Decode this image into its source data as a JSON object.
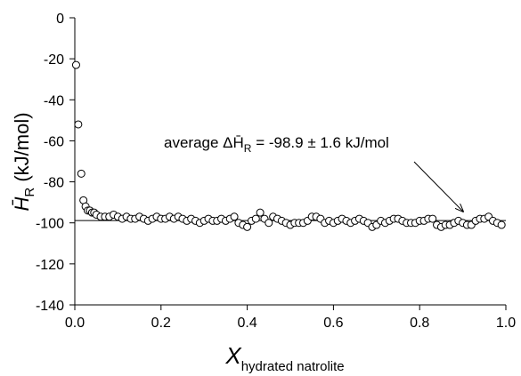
{
  "chart_data": {
    "type": "scatter",
    "ylabel": {
      "main": "H̄",
      "sub": "R",
      "unit": " (kJ/mol)"
    },
    "xlabel": {
      "main": "X",
      "sub": "hydrated natrolite"
    },
    "annotation": {
      "before": "average ΔH̄",
      "sub": "R",
      "after": " = -98.9 ± 1.6 kJ/mol"
    },
    "hline": -98.9,
    "marker_color": "#000000",
    "xlim": [
      0,
      1
    ],
    "ylim": [
      -140,
      0
    ],
    "xticks": [
      {
        "value": 0,
        "label": "0.0"
      },
      0.2,
      0.4,
      0.6,
      0.8,
      {
        "value": 1,
        "label": "1.0"
      }
    ],
    "yticks": [
      0,
      -20,
      -40,
      -60,
      -80,
      -100,
      -120,
      -140
    ],
    "x": [
      0.003,
      0.008,
      0.015,
      0.02,
      0.025,
      0.03,
      0.035,
      0.04,
      0.045,
      0.05,
      0.06,
      0.07,
      0.08,
      0.09,
      0.1,
      0.11,
      0.12,
      0.13,
      0.14,
      0.15,
      0.16,
      0.17,
      0.18,
      0.19,
      0.2,
      0.21,
      0.22,
      0.23,
      0.24,
      0.25,
      0.26,
      0.27,
      0.28,
      0.29,
      0.3,
      0.31,
      0.32,
      0.33,
      0.34,
      0.35,
      0.36,
      0.37,
      0.38,
      0.39,
      0.4,
      0.41,
      0.42,
      0.43,
      0.44,
      0.45,
      0.46,
      0.47,
      0.48,
      0.49,
      0.5,
      0.51,
      0.52,
      0.53,
      0.54,
      0.55,
      0.56,
      0.57,
      0.58,
      0.59,
      0.6,
      0.61,
      0.62,
      0.63,
      0.64,
      0.65,
      0.66,
      0.67,
      0.68,
      0.69,
      0.7,
      0.71,
      0.72,
      0.73,
      0.74,
      0.75,
      0.76,
      0.77,
      0.78,
      0.79,
      0.8,
      0.81,
      0.82,
      0.83,
      0.84,
      0.85,
      0.86,
      0.87,
      0.88,
      0.89,
      0.9,
      0.91,
      0.92,
      0.93,
      0.94,
      0.95,
      0.96,
      0.97,
      0.98,
      0.99
    ],
    "values": [
      -23,
      -52,
      -76,
      -89,
      -92,
      -94,
      -94,
      -95,
      -95,
      -96,
      -97,
      -97,
      -97,
      -96,
      -97,
      -98,
      -97,
      -98,
      -98,
      -97,
      -98,
      -99,
      -98,
      -97,
      -98,
      -98,
      -97,
      -98,
      -97,
      -98,
      -99,
      -98,
      -99,
      -100,
      -99,
      -98,
      -99,
      -99,
      -98,
      -99,
      -98,
      -97,
      -100,
      -101,
      -102,
      -99,
      -98,
      -95,
      -98,
      -100,
      -97,
      -98,
      -99,
      -100,
      -101,
      -100,
      -100,
      -100,
      -99,
      -97,
      -97,
      -98,
      -100,
      -99,
      -100,
      -99,
      -98,
      -99,
      -100,
      -99,
      -98,
      -99,
      -100,
      -102,
      -101,
      -99,
      -100,
      -99,
      -98,
      -98,
      -99,
      -100,
      -100,
      -100,
      -99,
      -99,
      -98,
      -98,
      -101,
      -102,
      -101,
      -101,
      -100,
      -99,
      -100,
      -101,
      -101,
      -99,
      -98,
      -98,
      -97,
      -99,
      -100,
      -101
    ]
  }
}
